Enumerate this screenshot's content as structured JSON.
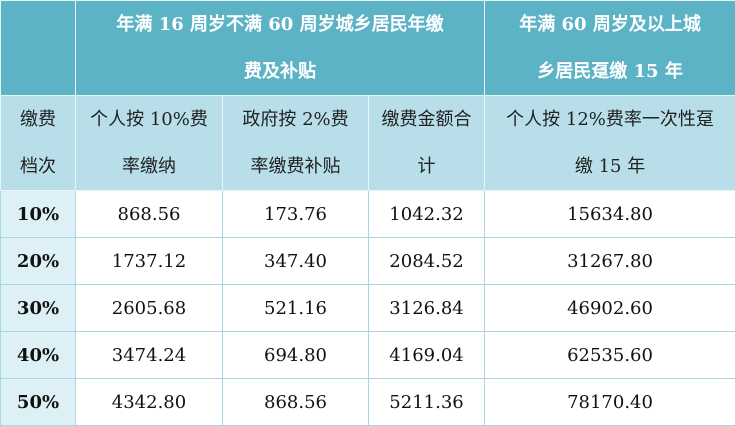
{
  "table": {
    "groups": [
      "年满 16 周岁不满 60 周岁城乡居民年缴费及补贴",
      "年满 60 周岁及以上城乡居民趸缴 15 年"
    ],
    "columns": [
      "缴费档次",
      "个人按 10%费率缴纳",
      "政府按 2%费率缴费补贴",
      "缴费金额合计",
      "个人按 12%费率一次性趸缴 15 年"
    ],
    "rows": [
      [
        "10%",
        "868.56",
        "173.76",
        "1042.32",
        "15634.80"
      ],
      [
        "20%",
        "1737.12",
        "347.40",
        "2084.52",
        "31267.80"
      ],
      [
        "30%",
        "2605.68",
        "521.16",
        "3126.84",
        "46902.60"
      ],
      [
        "40%",
        "3474.24",
        "694.80",
        "4169.04",
        "62535.60"
      ],
      [
        "50%",
        "4342.80",
        "868.56",
        "5211.36",
        "78170.40"
      ]
    ]
  }
}
